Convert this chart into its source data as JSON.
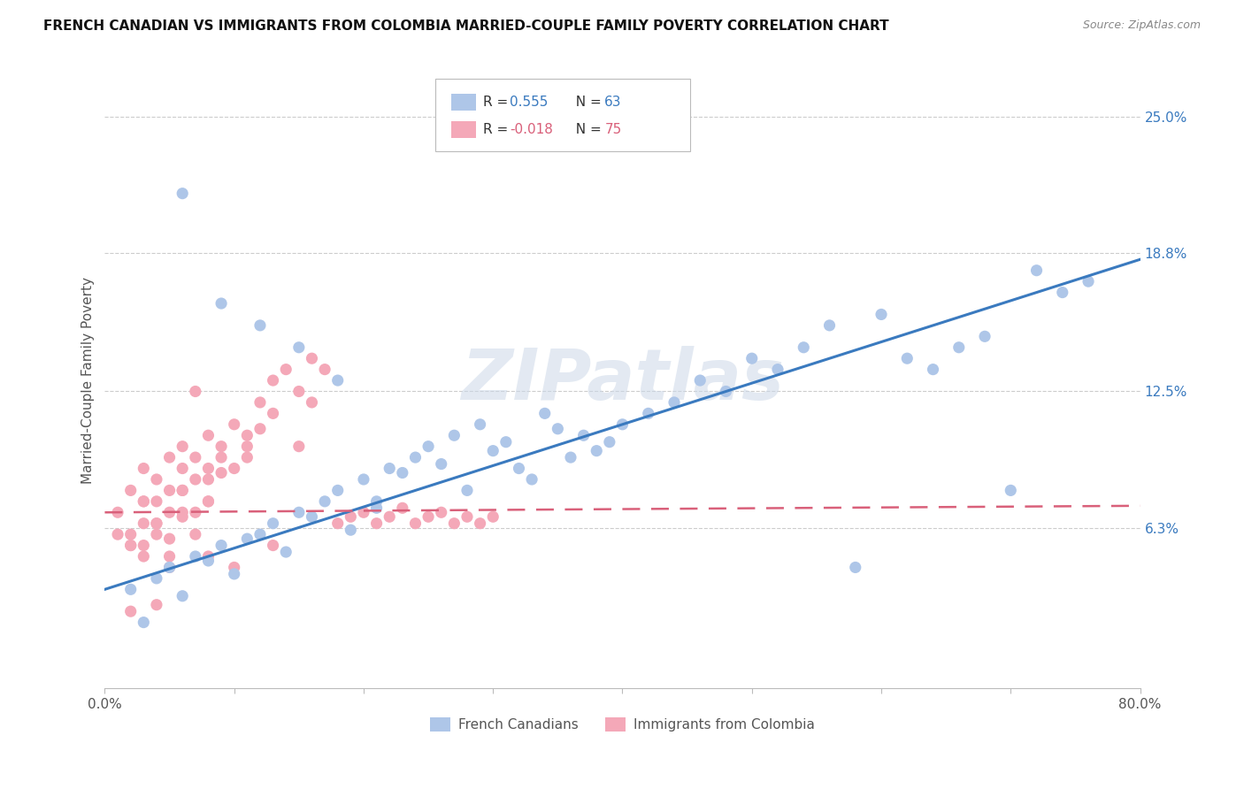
{
  "title": "FRENCH CANADIAN VS IMMIGRANTS FROM COLOMBIA MARRIED-COUPLE FAMILY POVERTY CORRELATION CHART",
  "source": "Source: ZipAtlas.com",
  "ylabel": "Married-Couple Family Poverty",
  "ytick_labels": [
    "6.3%",
    "12.5%",
    "18.8%",
    "25.0%"
  ],
  "ytick_values": [
    6.3,
    12.5,
    18.8,
    25.0
  ],
  "xlim": [
    0.0,
    80.0
  ],
  "ylim": [
    -1.0,
    27.0
  ],
  "legend_entry1": {
    "color": "#aec6e8",
    "R": "0.555",
    "N": "63",
    "label": "French Canadians"
  },
  "legend_entry2": {
    "color": "#f4a8b8",
    "R": "-0.018",
    "N": "75",
    "label": "Immigrants from Colombia"
  },
  "blue_scatter_color": "#aec6e8",
  "pink_scatter_color": "#f4a8b8",
  "blue_line_color": "#3a7abf",
  "pink_line_color": "#d9607a",
  "watermark": "ZIPatlas",
  "background_color": "#ffffff",
  "grid_color": "#cccccc",
  "blue_x": [
    2,
    4,
    5,
    6,
    7,
    8,
    9,
    10,
    11,
    12,
    13,
    14,
    15,
    16,
    17,
    18,
    19,
    20,
    21,
    22,
    23,
    24,
    25,
    26,
    27,
    28,
    29,
    30,
    31,
    32,
    33,
    34,
    35,
    36,
    37,
    38,
    39,
    40,
    42,
    44,
    46,
    48,
    50,
    52,
    54,
    56,
    58,
    60,
    62,
    64,
    66,
    68,
    70,
    72,
    74,
    76,
    3,
    6,
    9,
    12,
    15,
    18,
    21
  ],
  "blue_y": [
    3.5,
    4.0,
    4.5,
    3.2,
    5.0,
    4.8,
    5.5,
    4.2,
    5.8,
    6.0,
    6.5,
    5.2,
    7.0,
    6.8,
    7.5,
    8.0,
    6.2,
    8.5,
    7.2,
    9.0,
    8.8,
    9.5,
    10.0,
    9.2,
    10.5,
    8.0,
    11.0,
    9.8,
    10.2,
    9.0,
    8.5,
    11.5,
    10.8,
    9.5,
    10.5,
    9.8,
    10.2,
    11.0,
    11.5,
    12.0,
    13.0,
    12.5,
    14.0,
    13.5,
    14.5,
    15.5,
    4.5,
    16.0,
    14.0,
    13.5,
    14.5,
    15.0,
    8.0,
    18.0,
    17.0,
    17.5,
    2.0,
    21.5,
    16.5,
    15.5,
    14.5,
    13.0,
    7.5
  ],
  "pink_x": [
    1,
    1,
    2,
    2,
    3,
    3,
    3,
    4,
    4,
    5,
    5,
    5,
    6,
    6,
    6,
    7,
    7,
    7,
    8,
    8,
    8,
    9,
    9,
    10,
    10,
    11,
    11,
    12,
    12,
    13,
    13,
    14,
    15,
    15,
    16,
    16,
    17,
    18,
    19,
    20,
    21,
    22,
    23,
    24,
    25,
    26,
    27,
    28,
    29,
    30,
    3,
    5,
    8,
    2,
    4,
    6,
    9,
    11,
    7,
    4,
    6,
    3,
    5,
    8,
    10,
    13,
    2,
    4,
    6,
    8,
    3,
    5,
    7,
    2,
    4
  ],
  "pink_y": [
    7.0,
    6.0,
    8.0,
    5.5,
    7.5,
    9.0,
    6.5,
    6.5,
    8.5,
    7.0,
    9.5,
    5.8,
    8.0,
    6.8,
    10.0,
    8.5,
    7.0,
    9.5,
    9.0,
    10.5,
    7.5,
    10.0,
    8.8,
    11.0,
    9.0,
    10.5,
    9.5,
    12.0,
    10.8,
    13.0,
    11.5,
    13.5,
    12.5,
    10.0,
    14.0,
    12.0,
    13.5,
    6.5,
    6.8,
    7.0,
    6.5,
    6.8,
    7.2,
    6.5,
    6.8,
    7.0,
    6.5,
    6.8,
    6.5,
    6.8,
    7.5,
    8.0,
    8.5,
    5.5,
    6.0,
    9.0,
    9.5,
    10.0,
    12.5,
    7.5,
    8.0,
    5.0,
    4.5,
    5.0,
    4.5,
    5.5,
    6.0,
    6.5,
    7.0,
    7.5,
    5.5,
    5.0,
    6.0,
    2.5,
    2.8
  ]
}
